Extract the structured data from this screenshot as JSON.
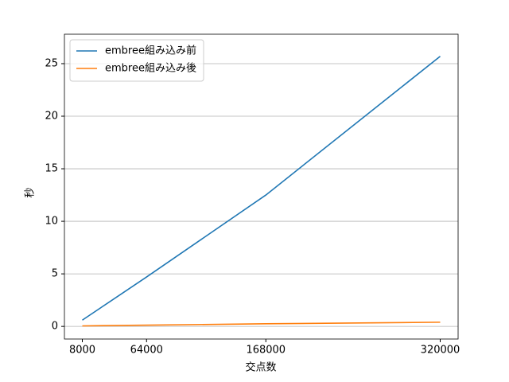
{
  "chart_data": {
    "type": "line",
    "x_label": "交点数",
    "y_label": "秒",
    "x": [
      8000,
      64000,
      168000,
      320000
    ],
    "series": [
      {
        "name": "embree組み込み前",
        "color": "#1f77b4",
        "values": [
          0.6,
          4.7,
          12.5,
          25.7
        ]
      },
      {
        "name": "embree組み込み後",
        "color": "#ff7f0e",
        "values": [
          0.05,
          0.12,
          0.25,
          0.4
        ]
      }
    ],
    "xlim": [
      -7600,
      335600
    ],
    "ylim": [
      -1.2,
      27.8
    ],
    "xticks": [
      8000,
      64000,
      168000,
      320000
    ],
    "yticks": [
      0,
      5,
      10,
      15,
      20,
      25
    ],
    "grid": "y",
    "legend": "upper-left"
  }
}
